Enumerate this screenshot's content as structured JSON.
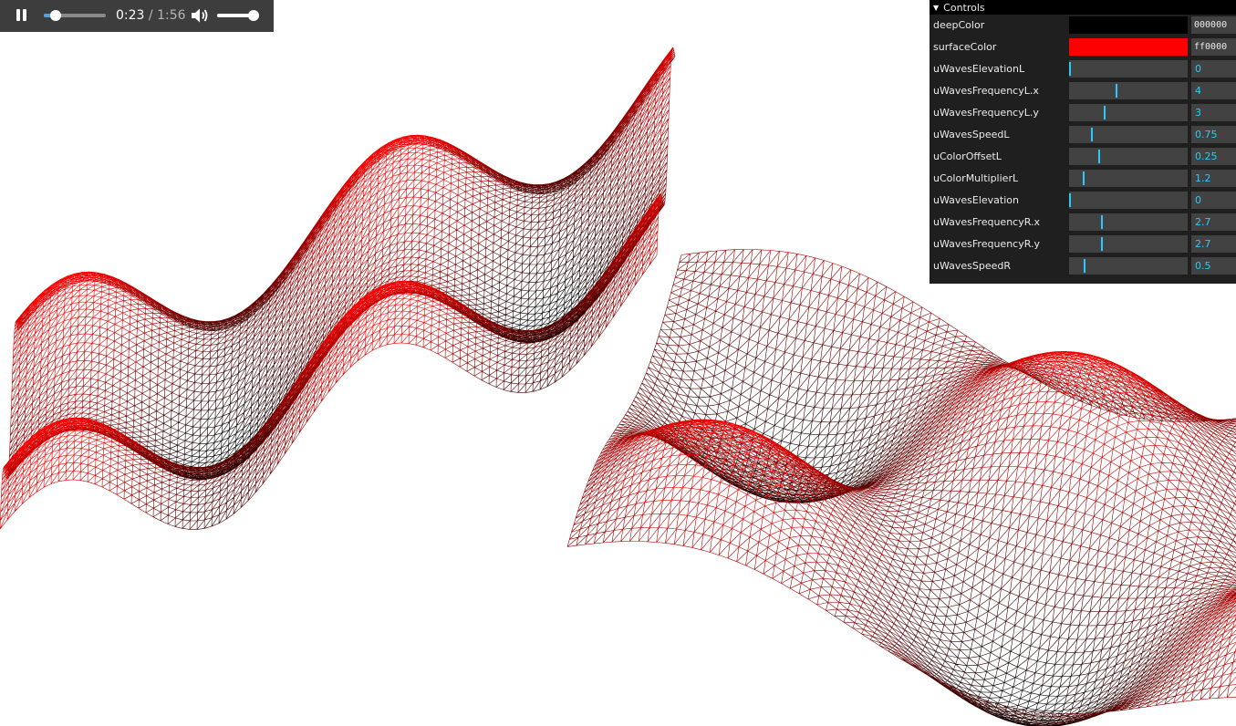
{
  "player": {
    "current_time": "0:23",
    "separator": "/",
    "duration": "1:56",
    "progress": 0.198,
    "volume": 0.88
  },
  "gui": {
    "title": "Controls",
    "colors": [
      {
        "label": "deepColor",
        "hex": "000000",
        "swatch": "#000000"
      },
      {
        "label": "surfaceColor",
        "hex": "ff0000",
        "swatch": "#ff0000"
      }
    ],
    "params": [
      {
        "label": "uWavesElevationL",
        "value": "0",
        "level": 0.0
      },
      {
        "label": "uWavesFrequencyL.x",
        "value": "4",
        "level": 0.4
      },
      {
        "label": "uWavesFrequencyL.y",
        "value": "3",
        "level": 0.3
      },
      {
        "label": "uWavesSpeedL",
        "value": "0.75",
        "level": 0.19
      },
      {
        "label": "uColorOffsetL",
        "value": "0.25",
        "level": 0.25
      },
      {
        "label": "uColorMultiplierL",
        "value": "1.2",
        "level": 0.12
      },
      {
        "label": "uWavesElevation",
        "value": "0",
        "level": 0.0
      },
      {
        "label": "uWavesFrequencyR.x",
        "value": "2.7",
        "level": 0.27
      },
      {
        "label": "uWavesFrequencyR.y",
        "value": "2.7",
        "level": 0.27
      },
      {
        "label": "uWavesSpeedR",
        "value": "0.5",
        "level": 0.125
      }
    ]
  },
  "scene": {
    "deep_color": "#000000",
    "surface_color": "#ff0000"
  }
}
